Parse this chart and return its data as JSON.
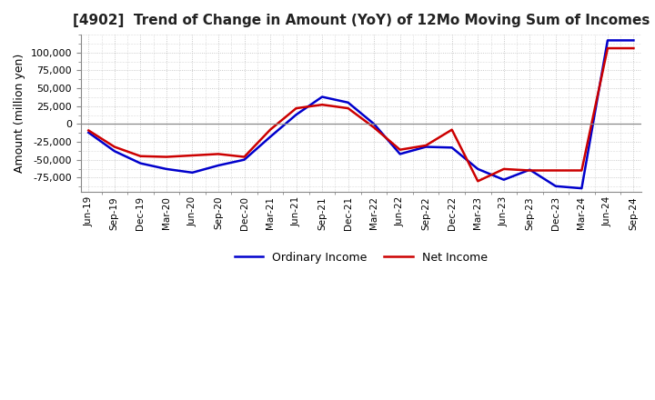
{
  "title": "[4902]  Trend of Change in Amount (YoY) of 12Mo Moving Sum of Incomes",
  "ylabel": "Amount (million yen)",
  "background_color": "#ffffff",
  "grid_color": "#bbbbbb",
  "plot_bg_color": "#ffffff",
  "x_labels": [
    "Jun-19",
    "Sep-19",
    "Dec-19",
    "Mar-20",
    "Jun-20",
    "Sep-20",
    "Dec-20",
    "Mar-21",
    "Jun-21",
    "Sep-21",
    "Dec-21",
    "Mar-22",
    "Jun-22",
    "Sep-22",
    "Dec-22",
    "Mar-23",
    "Jun-23",
    "Sep-23",
    "Dec-23",
    "Mar-24",
    "Jun-24",
    "Sep-24"
  ],
  "ordinary_income": [
    -12000,
    -38000,
    -55000,
    -63000,
    -68000,
    -58000,
    -50000,
    -18000,
    13000,
    38000,
    30000,
    0,
    -42000,
    -32000,
    -33000,
    -63000,
    -78000,
    -64000,
    -87000,
    -90000,
    117000,
    117000
  ],
  "net_income": [
    -9000,
    -32000,
    -45000,
    -46000,
    -44000,
    -42000,
    -46000,
    -8000,
    22000,
    27000,
    22000,
    -5000,
    -36000,
    -30000,
    -8000,
    -80000,
    -63000,
    -65000,
    -65000,
    -65000,
    106000,
    106000
  ],
  "ordinary_income_color": "#0000cc",
  "net_income_color": "#cc0000",
  "ylim": [
    -95000,
    125000
  ],
  "yticks": [
    -75000,
    -50000,
    -25000,
    0,
    25000,
    50000,
    75000,
    100000
  ],
  "line_width": 1.8,
  "legend_labels": [
    "Ordinary Income",
    "Net Income"
  ]
}
